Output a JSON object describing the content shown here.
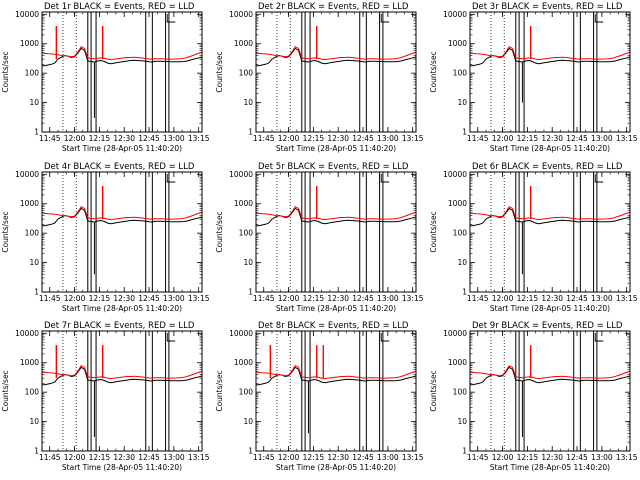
{
  "figure": {
    "background": "#ffffff",
    "colors": {
      "events": "#000000",
      "lld": "#ff0000",
      "axes": "#000000"
    }
  },
  "chart_data": [
    {
      "type": "line",
      "title": "Det 1r BLACK = Events, RED = LLD",
      "xlabel": "Start Time (28-Apr-05 11:40:20)",
      "ylabel": "Counts/sec",
      "yscale": "log",
      "ylim": [
        1,
        12000
      ],
      "yticks": [
        "1",
        "10",
        "100",
        "1000",
        "10000"
      ],
      "xticks": [
        "11:45",
        "12:00",
        "12:15",
        "12:30",
        "12:45",
        "13:00",
        "13:15"
      ],
      "red_spikes": [
        "11:49",
        "12:17"
      ],
      "black_dips": [
        [
          "12:12",
          3
        ]
      ]
    },
    {
      "type": "line",
      "title": "Det 2r BLACK = Events, RED = LLD",
      "xlabel": "Start Time (28-Apr-05 11:40:20)",
      "ylabel": "Counts/sec",
      "yscale": "log",
      "ylim": [
        1,
        12000
      ],
      "yticks": [
        "1",
        "10",
        "100",
        "1000",
        "10000"
      ],
      "xticks": [
        "11:45",
        "12:00",
        "12:15",
        "12:30",
        "12:45",
        "13:00",
        "13:15"
      ],
      "red_spikes": [
        "12:17"
      ],
      "black_dips": []
    },
    {
      "type": "line",
      "title": "Det 3r BLACK = Events, RED = LLD",
      "xlabel": "Start Time (28-Apr-05 11:40:20)",
      "ylabel": "Counts/sec",
      "yscale": "log",
      "ylim": [
        1,
        12000
      ],
      "yticks": [
        "1",
        "10",
        "100",
        "1000",
        "10000"
      ],
      "xticks": [
        "11:45",
        "12:00",
        "12:15",
        "12:30",
        "12:45",
        "13:00",
        "13:15"
      ],
      "red_spikes": [
        "12:17"
      ],
      "black_dips": [
        [
          "12:12",
          10
        ]
      ]
    },
    {
      "type": "line",
      "title": "Det 4r BLACK = Events, RED = LLD",
      "xlabel": "Start Time (28-Apr-05 11:40:20)",
      "ylabel": "Counts/sec",
      "yscale": "log",
      "ylim": [
        1,
        12000
      ],
      "yticks": [
        "1",
        "10",
        "100",
        "1000",
        "10000"
      ],
      "xticks": [
        "11:45",
        "12:00",
        "12:15",
        "12:30",
        "12:45",
        "13:00",
        "13:15"
      ],
      "red_spikes": [
        "12:17"
      ],
      "black_dips": [
        [
          "12:12",
          4
        ]
      ]
    },
    {
      "type": "line",
      "title": "Det 5r BLACK = Events, RED = LLD",
      "xlabel": "Start Time (28-Apr-05 11:40:20)",
      "ylabel": "Counts/sec",
      "yscale": "log",
      "ylim": [
        1,
        12000
      ],
      "yticks": [
        "1",
        "10",
        "100",
        "1000",
        "10000"
      ],
      "xticks": [
        "11:45",
        "12:00",
        "12:15",
        "12:30",
        "12:45",
        "13:00",
        "13:15"
      ],
      "red_spikes": [
        "12:17"
      ],
      "black_dips": []
    },
    {
      "type": "line",
      "title": "Det 6r BLACK = Events, RED = LLD",
      "xlabel": "Start Time (28-Apr-05 11:40:20)",
      "ylabel": "Counts/sec",
      "yscale": "log",
      "ylim": [
        1,
        12000
      ],
      "yticks": [
        "1",
        "10",
        "100",
        "1000",
        "10000"
      ],
      "xticks": [
        "11:45",
        "12:00",
        "12:15",
        "12:30",
        "12:45",
        "13:00",
        "13:15"
      ],
      "red_spikes": [
        "12:17"
      ],
      "black_dips": [
        [
          "12:12",
          4
        ]
      ]
    },
    {
      "type": "line",
      "title": "Det 7r BLACK = Events, RED = LLD",
      "xlabel": "Start Time (28-Apr-05 11:40:20)",
      "ylabel": "Counts/sec",
      "yscale": "log",
      "ylim": [
        1,
        12000
      ],
      "yticks": [
        "1",
        "10",
        "100",
        "1000",
        "10000"
      ],
      "xticks": [
        "11:45",
        "12:00",
        "12:15",
        "12:30",
        "12:45",
        "13:00",
        "13:15"
      ],
      "red_spikes": [
        "11:49",
        "12:17"
      ],
      "black_dips": [
        [
          "12:12",
          3
        ]
      ]
    },
    {
      "type": "line",
      "title": "Det 8r BLACK = Events, RED = LLD",
      "xlabel": "Start Time (28-Apr-05 11:40:20)",
      "ylabel": "Counts/sec",
      "yscale": "log",
      "ylim": [
        1,
        12000
      ],
      "yticks": [
        "1",
        "10",
        "100",
        "1000",
        "10000"
      ],
      "xticks": [
        "11:45",
        "12:00",
        "12:15",
        "12:30",
        "12:45",
        "13:00",
        "13:15"
      ],
      "red_spikes": [
        "11:49",
        "12:17",
        "12:21"
      ],
      "black_dips": [
        [
          "12:12",
          4
        ]
      ]
    },
    {
      "type": "line",
      "title": "Det 9r BLACK = Events, RED = LLD",
      "xlabel": "Start Time (28-Apr-05 11:40:20)",
      "ylabel": "Counts/sec",
      "yscale": "log",
      "ylim": [
        1,
        12000
      ],
      "yticks": [
        "1",
        "10",
        "100",
        "1000",
        "10000"
      ],
      "xticks": [
        "11:45",
        "12:00",
        "12:15",
        "12:30",
        "12:45",
        "13:00",
        "13:15"
      ],
      "red_spikes": [
        "12:17"
      ],
      "black_dips": [
        [
          "12:12",
          3
        ]
      ]
    }
  ],
  "shared_series": {
    "time": [
      "11:40:20",
      "11:42",
      "11:44",
      "11:46",
      "11:48",
      "11:50",
      "11:52",
      "11:54",
      "11:56",
      "11:58",
      "12:00",
      "12:02",
      "12:04",
      "12:06",
      "12:08",
      "12:10",
      "12:12",
      "12:14",
      "12:16",
      "12:18",
      "12:20",
      "12:22",
      "12:24",
      "12:26",
      "12:28",
      "12:30",
      "12:32",
      "12:34",
      "12:36",
      "12:38",
      "12:40",
      "12:42",
      "12:44",
      "12:46",
      "12:48",
      "12:50",
      "12:52",
      "12:54",
      "12:56",
      "12:58",
      "13:00",
      "13:02",
      "13:04",
      "13:06",
      "13:08",
      "13:10",
      "13:12",
      "13:14",
      "13:16",
      "13:17"
    ],
    "events": [
      180,
      180,
      190,
      200,
      220,
      300,
      350,
      400,
      380,
      340,
      360,
      480,
      700,
      600,
      260,
      250,
      240,
      260,
      270,
      250,
      220,
      210,
      220,
      230,
      240,
      250,
      260,
      270,
      275,
      270,
      265,
      260,
      250,
      240,
      250,
      255,
      255,
      250,
      250,
      245,
      245,
      245,
      245,
      250,
      260,
      280,
      300,
      320,
      340,
      360
    ],
    "lld": [
      480,
      470,
      460,
      450,
      440,
      420,
      400,
      390,
      380,
      360,
      380,
      520,
      800,
      700,
      330,
      320,
      310,
      320,
      330,
      320,
      300,
      290,
      300,
      310,
      320,
      330,
      340,
      340,
      345,
      340,
      330,
      320,
      310,
      300,
      305,
      310,
      310,
      305,
      300,
      300,
      300,
      305,
      310,
      320,
      340,
      370,
      410,
      450,
      490,
      520
    ]
  }
}
